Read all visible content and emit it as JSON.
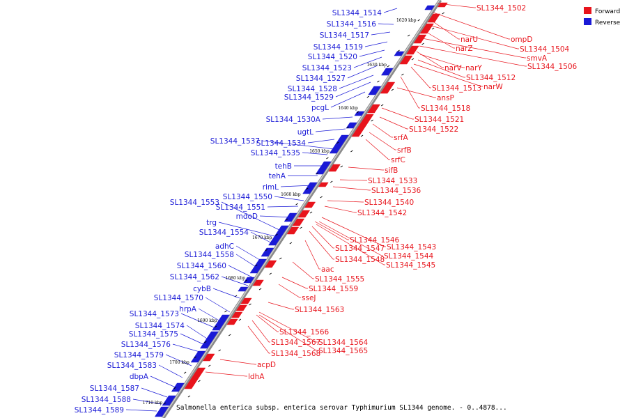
{
  "legend": {
    "forward_label": "Forward",
    "reverse_label": "Reverse",
    "forward_color": "#e8141c",
    "reverse_color": "#1a1ad6"
  },
  "caption": "Salmonella enterica subsp. enterica serovar Typhimurium SL1344 genome. - 0..4878...",
  "ticks": [
    "1620 kbp",
    "1630 kbp",
    "1640 kbp",
    "1650 kbp",
    "1660 kbp",
    "1670 kbp",
    "1680 kbp",
    "1690 kbp",
    "1700 kbp",
    "1710 kbp"
  ],
  "forward_genes": [
    "SL1344_1502",
    "ompD",
    "narU",
    "SL1344_1504",
    "narZ",
    "smvA",
    "SL1344_1506",
    "narV",
    "narY",
    "SL1344_1512",
    "narW",
    "SL1344_1513",
    "ansP",
    "SL1344_1518",
    "SL1344_1521",
    "SL1344_1522",
    "srfA",
    "srfB",
    "srfC",
    "sifB",
    "SL1344_1533",
    "SL1344_1536",
    "SL1344_1540",
    "SL1344_1542",
    "SL1344_1546",
    "SL1344_1543",
    "SL1344_1547",
    "SL1344_1544",
    "SL1344_1548",
    "SL1344_1545",
    "aac",
    "SL1344_1555",
    "SL1344_1559",
    "sseJ",
    "SL1344_1563",
    "SL1344_1566",
    "SL1344_1567",
    "SL1344_1564",
    "SL1344_1568",
    "SL1344_1565",
    "acpD",
    "ldhA"
  ],
  "reverse_genes": [
    "SL1344_1514",
    "SL1344_1516",
    "SL1344_1517",
    "SL1344_1519",
    "SL1344_1520",
    "SL1344_1523",
    "SL1344_1527",
    "SL1344_1528",
    "SL1344_1529",
    "pcgL",
    "SL1344_1530A",
    "ugtL",
    "SL1344_1537",
    "SL1344_1534",
    "SL1344_1535",
    "tehB",
    "tehA",
    "rimL",
    "SL1344_1550",
    "SL1344_1553",
    "SL1344_1551",
    "mdoD",
    "trg",
    "SL1344_1554",
    "adhC",
    "SL1344_1558",
    "SL1344_1560",
    "SL1344_1562",
    "cybB",
    "SL1344_1570",
    "hrpA",
    "SL1344_1573",
    "SL1344_1574",
    "SL1344_1575",
    "SL1344_1576",
    "SL1344_1579",
    "SL1344_1583",
    "dbpA",
    "SL1344_1587",
    "SL1344_1588",
    "SL1344_1589"
  ]
}
